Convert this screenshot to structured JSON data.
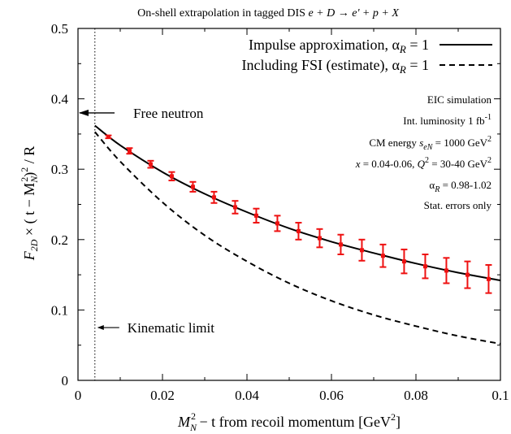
{
  "chart_data": {
    "type": "line",
    "title": "On-shell extrapolation in tagged DIS e + D → e' + p + X",
    "title_parts": {
      "lead": "On-shell extrapolation in tagged DIS ",
      "reaction": "e + D → e' + p + X"
    },
    "xlabel": {
      "lead": "M",
      "sub": "N",
      "sup": "2",
      "rest": " − t   from recoil momentum   [GeV",
      "unit_sup": "2",
      "close": "]"
    },
    "ylabel": {
      "a": "F",
      "a_sub": "2D",
      "b": " × ( t − M",
      "b_sub": "N",
      "b_sup": "2",
      "c": ")",
      "c_sup": "2",
      "d": " / R"
    },
    "xlim": [
      0,
      0.1
    ],
    "ylim": [
      0,
      0.5
    ],
    "x_ticks": [
      "0",
      "0.02",
      "0.04",
      "0.06",
      "0.08",
      "0.1"
    ],
    "y_ticks": [
      "0",
      "0.1",
      "0.2",
      "0.3",
      "0.4",
      "0.5"
    ],
    "grid": false,
    "legend_position": "top-right",
    "series": [
      {
        "name": "Impulse approximation, α_R = 1",
        "label_text": "Impulse approximation, α",
        "label_sub": "R",
        "label_tail": " = 1",
        "style": "solid",
        "color": "#000000",
        "x": [
          0.004,
          0.01,
          0.02,
          0.03,
          0.04,
          0.05,
          0.06,
          0.07,
          0.08,
          0.09,
          0.1
        ],
        "y": [
          0.362,
          0.334,
          0.296,
          0.265,
          0.239,
          0.216,
          0.197,
          0.181,
          0.166,
          0.153,
          0.142
        ]
      },
      {
        "name": "Including FSI (estimate), α_R = 1",
        "label_text": "Including FSI (estimate), α",
        "label_sub": "R",
        "label_tail": " = 1",
        "style": "dashed",
        "color": "#000000",
        "x": [
          0.004,
          0.01,
          0.02,
          0.03,
          0.04,
          0.05,
          0.06,
          0.07,
          0.08,
          0.09,
          0.1
        ],
        "y": [
          0.353,
          0.311,
          0.253,
          0.206,
          0.169,
          0.138,
          0.113,
          0.093,
          0.077,
          0.063,
          0.052
        ]
      },
      {
        "name": "EIC simulation",
        "style": "points-with-errors",
        "color": "#ee1111",
        "x": [
          0.0072,
          0.0122,
          0.0172,
          0.0222,
          0.0272,
          0.0322,
          0.0372,
          0.0422,
          0.0472,
          0.0522,
          0.0572,
          0.0622,
          0.0672,
          0.0722,
          0.0772,
          0.0822,
          0.0872,
          0.0922,
          0.0972
        ],
        "y": [
          0.346,
          0.326,
          0.307,
          0.29,
          0.275,
          0.26,
          0.246,
          0.234,
          0.223,
          0.212,
          0.202,
          0.193,
          0.185,
          0.177,
          0.169,
          0.162,
          0.156,
          0.15,
          0.144
        ],
        "err": [
          0.002,
          0.004,
          0.005,
          0.006,
          0.007,
          0.008,
          0.009,
          0.01,
          0.011,
          0.012,
          0.013,
          0.014,
          0.015,
          0.016,
          0.017,
          0.017,
          0.018,
          0.019,
          0.02
        ]
      }
    ],
    "annotations": {
      "free_neutron": {
        "text": "Free neutron",
        "y": 0.38
      },
      "kinematic_limit": {
        "text": "Kinematic limit",
        "x": 0.004,
        "y": 0.075
      },
      "info_lines": [
        {
          "parts": [
            {
              "t": "EIC simulation"
            }
          ]
        },
        {
          "parts": [
            {
              "t": "Int. luminosity 1 fb"
            },
            {
              "t": "-1",
              "sup": true
            }
          ]
        },
        {
          "parts": [
            {
              "t": "CM energy "
            },
            {
              "t": "s",
              "it": true
            },
            {
              "t": "eN",
              "sub": true,
              "it": true
            },
            {
              "t": " = 1000 GeV"
            },
            {
              "t": "2",
              "sup": true
            }
          ]
        },
        {
          "parts": [
            {
              "t": "x",
              "it": true
            },
            {
              "t": " = 0.04-0.06,  "
            },
            {
              "t": "Q",
              "it": true
            },
            {
              "t": "2",
              "sup": true
            },
            {
              "t": " = 30-40 GeV"
            },
            {
              "t": "2",
              "sup": true
            }
          ]
        },
        {
          "parts": [
            {
              "t": "α"
            },
            {
              "t": "R",
              "sub": true,
              "it": true
            },
            {
              "t": " = 0.98-1.02"
            }
          ]
        },
        {
          "parts": [
            {
              "t": "Stat. errors only"
            }
          ]
        }
      ]
    }
  }
}
